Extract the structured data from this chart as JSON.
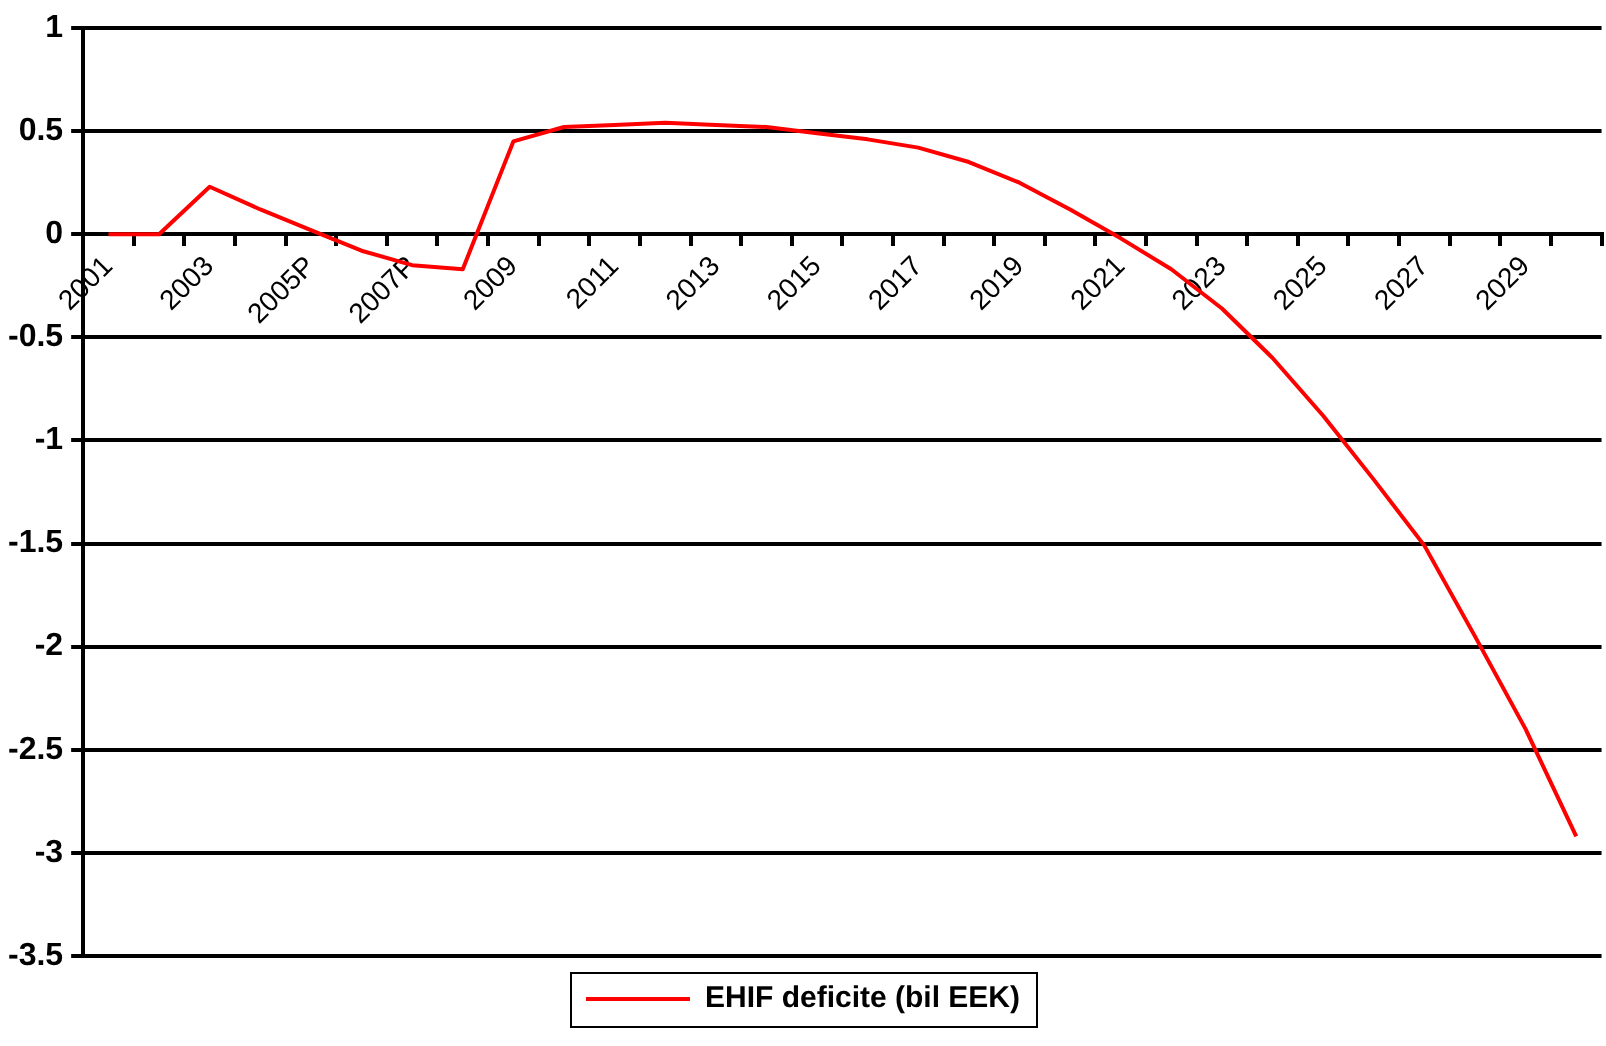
{
  "chart_data": {
    "type": "line",
    "categories": [
      "2001",
      null,
      "2003",
      null,
      "2005P",
      null,
      "2007P",
      null,
      "2009",
      null,
      "2011",
      null,
      "2013",
      null,
      "2015",
      null,
      "2017",
      null,
      "2019",
      null,
      "2021",
      null,
      "2023",
      null,
      "2025",
      null,
      "2027",
      null,
      "2029",
      null
    ],
    "series": [
      {
        "name": "EHIF deficite (bil EEK)",
        "color": "#ff0000",
        "values": [
          0,
          0,
          0.23,
          0.12,
          0.02,
          -0.08,
          -0.15,
          -0.17,
          0.45,
          0.52,
          0.53,
          0.54,
          0.53,
          0.52,
          0.49,
          0.46,
          0.42,
          0.35,
          0.25,
          0.12,
          -0.02,
          -0.17,
          -0.36,
          -0.6,
          -0.88,
          -1.19,
          -1.51,
          -1.95,
          -2.4,
          -2.92
        ]
      }
    ],
    "ylim": [
      -3.5,
      1
    ],
    "yticks": [
      -3.5,
      -3,
      -2.5,
      -2,
      -1.5,
      -1,
      -0.5,
      0,
      0.5,
      1
    ],
    "grid": "y",
    "legend": "bottom",
    "marker": "none",
    "line_style": "solid"
  }
}
